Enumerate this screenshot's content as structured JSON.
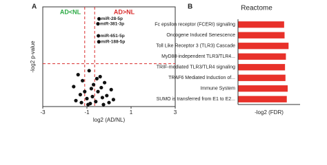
{
  "chart_data": [
    {
      "type": "scatter",
      "panel": "A",
      "xlabel": "log2 (AD/NL)",
      "ylabel": "-log2 p-value",
      "left_label": "AD<NL",
      "left_color": "#2daa45",
      "right_label": "AD>NL",
      "right_color": "#d92b2b",
      "xlim": [
        -3,
        3
      ],
      "xticks": [
        -3,
        -1,
        1,
        3
      ],
      "ylim": [
        0,
        10
      ],
      "vlines": [
        -1.1,
        -0.65
      ],
      "hline": 4.3,
      "threshold_color": "#d92b2b",
      "color": "#111111",
      "x": [
        -0.45,
        -0.5,
        -0.48,
        -0.46,
        -1.6,
        -1.4,
        -1.3,
        -1.2,
        -1.0,
        -0.9,
        -0.8,
        -0.7,
        -0.6,
        -0.5,
        -0.4,
        -0.3,
        -0.2,
        -0.1,
        0.0,
        0.1,
        -1.5,
        -1.1,
        -0.85,
        -0.55,
        -0.25,
        -0.75,
        -0.35,
        -0.95,
        -1.25,
        0.2
      ],
      "y": [
        8.8,
        8.3,
        7.1,
        6.5,
        2.0,
        3.2,
        1.2,
        2.6,
        0.8,
        3.6,
        1.8,
        2.2,
        0.5,
        1.5,
        3.0,
        0.9,
        2.4,
        1.1,
        0.4,
        1.7,
        0.6,
        1.5,
        0.3,
        2.8,
        0.2,
        1.0,
        1.9,
        0.2,
        0.4,
        0.7
      ],
      "point_labels": [
        "miR-28-5p",
        "miR-381-3p",
        "miR-651-5p",
        "miR-188-5p",
        null,
        null,
        null,
        null,
        null,
        null,
        null,
        null,
        null,
        null,
        null,
        null,
        null,
        null,
        null,
        null,
        null,
        null,
        null,
        null,
        null,
        null,
        null,
        null,
        null,
        null
      ]
    },
    {
      "type": "hbar",
      "panel": "B",
      "title": "Reactome",
      "xlabel": "-log2 (FDR)",
      "color": "#e8312a",
      "xlim": [
        0,
        14
      ],
      "categories": [
        "Fc epsilon receptor (FCERI) signaling",
        "Oncogene Induced Senescence",
        "Toll Like Receptor 3 (TLR3) Cascade",
        "MyD88-independent TLR3/TLR4...",
        "TRIF-mediated TLR3/TLR4 signaling",
        "TRAF6 Mediated Induction of...",
        "Immune System",
        "SUMO is transferred from E1 to E2..."
      ],
      "values": [
        10.4,
        10.5,
        11.4,
        10.8,
        10.6,
        10.7,
        11.2,
        11.0
      ]
    }
  ]
}
